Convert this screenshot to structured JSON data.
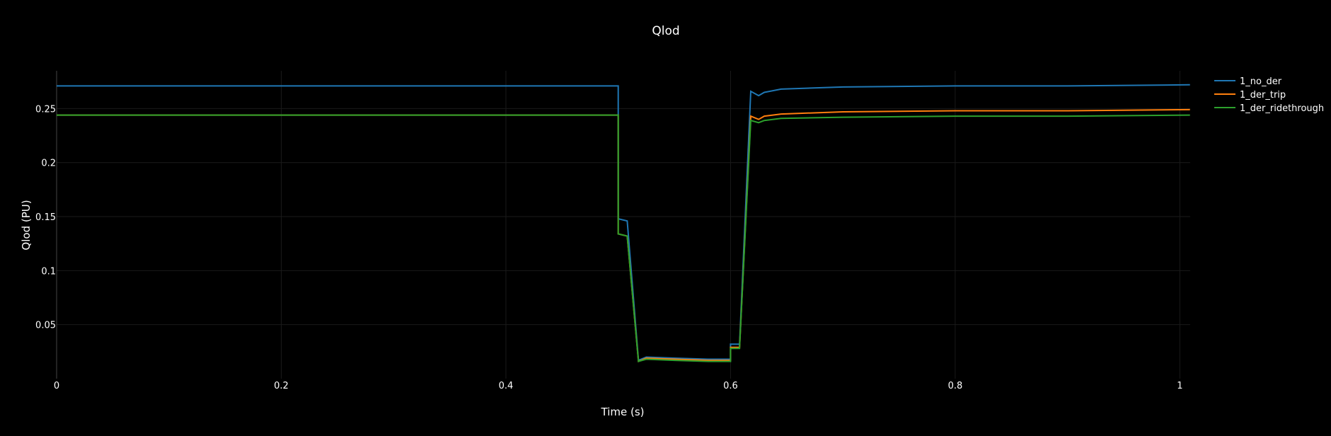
{
  "chart_data": {
    "type": "line",
    "title": "Qlod",
    "xlabel": "Time (s)",
    "ylabel": "Qlod (PU)",
    "xlim": [
      0,
      1.0092
    ],
    "ylim": [
      0,
      0.285
    ],
    "x_ticks": [
      0,
      0.2,
      0.4,
      0.6,
      0.8,
      1
    ],
    "x_tick_labels": [
      "0",
      "0.2",
      "0.4",
      "0.6",
      "0.8",
      "1"
    ],
    "y_ticks": [
      0.05,
      0.1,
      0.15,
      0.2,
      0.25
    ],
    "y_tick_labels": [
      "0.05",
      "0.1",
      "0.15",
      "0.2",
      "0.25"
    ],
    "grid": true,
    "legend_position": "top-right",
    "series": [
      {
        "name": "1_no_der",
        "color": "#1f77b4",
        "x": [
          0,
          0.5,
          0.5,
          0.508,
          0.518,
          0.525,
          0.55,
          0.58,
          0.6,
          0.6,
          0.608,
          0.608,
          0.618,
          0.625,
          0.63,
          0.645,
          0.7,
          0.8,
          0.9,
          1.009
        ],
        "y": [
          0.271,
          0.271,
          0.148,
          0.146,
          0.017,
          0.02,
          0.019,
          0.018,
          0.018,
          0.032,
          0.032,
          0.031,
          0.266,
          0.262,
          0.265,
          0.268,
          0.27,
          0.271,
          0.271,
          0.272
        ]
      },
      {
        "name": "1_der_trip",
        "color": "#ff7f0e",
        "x": [
          0,
          0.5,
          0.5,
          0.508,
          0.518,
          0.525,
          0.55,
          0.58,
          0.6,
          0.6,
          0.608,
          0.608,
          0.618,
          0.625,
          0.63,
          0.645,
          0.7,
          0.8,
          0.9,
          1.009
        ],
        "y": [
          0.244,
          0.244,
          0.134,
          0.132,
          0.016,
          0.019,
          0.018,
          0.017,
          0.017,
          0.029,
          0.029,
          0.028,
          0.243,
          0.24,
          0.243,
          0.245,
          0.247,
          0.248,
          0.248,
          0.249
        ]
      },
      {
        "name": "1_der_ridethrough",
        "color": "#2ca02c",
        "x": [
          0,
          0.5,
          0.5,
          0.508,
          0.518,
          0.525,
          0.55,
          0.58,
          0.6,
          0.6,
          0.608,
          0.608,
          0.618,
          0.625,
          0.63,
          0.645,
          0.7,
          0.8,
          0.9,
          1.009
        ],
        "y": [
          0.244,
          0.244,
          0.134,
          0.132,
          0.016,
          0.018,
          0.017,
          0.016,
          0.016,
          0.028,
          0.028,
          0.028,
          0.239,
          0.237,
          0.239,
          0.241,
          0.242,
          0.243,
          0.243,
          0.244
        ]
      }
    ]
  },
  "colors": {
    "background": "#000000",
    "text": "#ffffff",
    "grid": "#1a1a1a",
    "axis": "#444444"
  }
}
